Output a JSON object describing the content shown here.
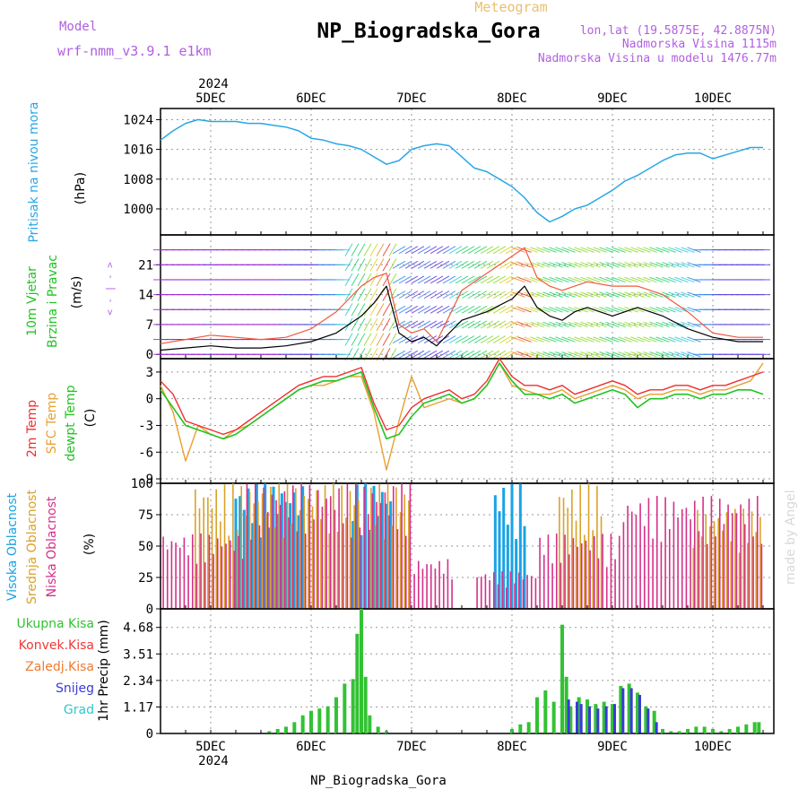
{
  "header": {
    "meteogram_label": "Meteogram",
    "model_label": "Model",
    "model_name": "wrf-nmm_v3.9.1 e1km",
    "station_title": "NP_Biogradska_Gora",
    "lonlat": "lon,lat (19.5875E, 42.8875N)",
    "elevation": "Nadmorska Visina 1115m",
    "model_elevation": "Nadmorska Visina u modelu 1476.77m"
  },
  "footer": {
    "station": "NP_Biogradska_Gora",
    "watermark": "made by Angel"
  },
  "colors": {
    "pressure": "#29a7e6",
    "wind_speed": "#000000",
    "gust": "#f05a3c",
    "temp2m": "#f02e2e",
    "sfc_temp": "#e8a030",
    "dewpoint": "#22c322",
    "high_cloud": "#1aa3e6",
    "mid_cloud": "#d9a22a",
    "low_cloud": "#d4308a",
    "total_precip": "#33c233",
    "conv_precip": "#f03838",
    "frozen": "#f07a30",
    "snow": "#3a3ad9",
    "graupel": "#2ec9c9",
    "side_purple": "#b060e0"
  },
  "chart_data": [
    {
      "type": "line",
      "id": "pressure",
      "ylabel_main": "Pritisak na nivou mora",
      "ylabel_unit": "(hPa)",
      "ylim": [
        993,
        1027
      ],
      "yticks": [
        "1024",
        "1016",
        "1008",
        "1000"
      ],
      "yticks_values": [
        1024,
        1016,
        1008,
        1000
      ],
      "grid": true,
      "top_axis": {
        "year": "2024",
        "days": [
          "5DEC",
          "6DEC",
          "7DEC",
          "8DEC",
          "9DEC",
          "10DEC"
        ]
      },
      "series": [
        {
          "name": "Pritisak na nivou mora",
          "x": [
            0,
            3,
            6,
            9,
            12,
            15,
            18,
            21,
            24,
            27,
            30,
            33,
            36,
            39,
            42,
            45,
            48,
            51,
            54,
            57,
            60,
            63,
            66,
            69,
            72,
            75,
            78,
            81,
            84,
            87,
            90,
            93,
            96,
            99,
            102,
            105,
            108,
            111,
            114,
            117,
            120,
            123,
            126,
            129,
            132,
            135,
            138,
            141,
            144
          ],
          "values": [
            1018.5,
            1021,
            1023,
            1024,
            1023.5,
            1023.5,
            1023.5,
            1023,
            1023,
            1022.5,
            1022,
            1021,
            1019,
            1018.5,
            1017.5,
            1017,
            1016,
            1014,
            1012,
            1013,
            1016,
            1017,
            1017.5,
            1017,
            1014,
            1011,
            1010,
            1008,
            1006,
            1003,
            999,
            996.5,
            998,
            1000,
            1001,
            1003,
            1005,
            1007.5,
            1009,
            1011,
            1013,
            1014.5,
            1015,
            1015,
            1013.5,
            1014.5,
            1015.5,
            1016.5,
            1016.5
          ]
        }
      ]
    },
    {
      "type": "line",
      "id": "wind",
      "ylabel_main": "10m Vjetar",
      "ylabel_main2": "Brzina i Pravac",
      "ylabel_unit": "(m/s)",
      "compass": "N S E W",
      "ylim": [
        -1,
        28
      ],
      "yticks": [
        "21",
        "14",
        "7",
        "0"
      ],
      "yticks_values": [
        21,
        14,
        7,
        0
      ],
      "grid": true,
      "series": [
        {
          "name": "10m Vjetar",
          "x": [
            0,
            6,
            12,
            18,
            24,
            30,
            36,
            42,
            48,
            51,
            54,
            57,
            60,
            63,
            66,
            72,
            78,
            84,
            87,
            90,
            93,
            96,
            99,
            102,
            108,
            114,
            120,
            126,
            132,
            138,
            144
          ],
          "values": [
            1,
            1.5,
            2,
            1.5,
            1.5,
            2,
            3,
            5,
            9,
            12,
            16,
            5,
            3,
            4,
            2,
            8,
            10,
            13,
            16,
            11,
            9,
            8,
            10,
            11,
            9,
            11,
            9,
            6,
            4,
            3,
            3
          ]
        },
        {
          "name": "Udari",
          "x": [
            0,
            6,
            12,
            18,
            24,
            30,
            36,
            42,
            48,
            51,
            54,
            57,
            60,
            63,
            66,
            72,
            78,
            84,
            87,
            90,
            93,
            96,
            99,
            102,
            108,
            114,
            120,
            126,
            132,
            138,
            144
          ],
          "values": [
            2.5,
            3.5,
            4.5,
            4,
            3.5,
            4,
            6,
            10,
            16,
            18,
            19,
            7,
            5,
            6,
            3,
            15,
            19,
            23,
            25,
            18,
            16,
            15,
            16,
            17,
            16,
            16,
            14,
            10,
            5,
            4,
            4
          ]
        }
      ]
    },
    {
      "type": "line",
      "id": "temperature",
      "ylabel_main": "2m Temp",
      "ylabel_main2": "SFC Temp",
      "ylabel_main3": "dewpt Temp",
      "ylabel_unit": "(C)",
      "ylim": [
        -9.5,
        4.5
      ],
      "yticks": [
        "3",
        "0",
        "-3",
        "-6",
        "-9"
      ],
      "yticks_values": [
        3,
        0,
        -3,
        -6,
        -9
      ],
      "grid": true,
      "series": [
        {
          "name": "2m Temp",
          "x": [
            0,
            3,
            6,
            9,
            12,
            15,
            18,
            21,
            24,
            27,
            30,
            33,
            36,
            39,
            42,
            45,
            48,
            51,
            54,
            57,
            60,
            63,
            66,
            69,
            72,
            75,
            78,
            81,
            84,
            87,
            90,
            93,
            96,
            99,
            102,
            105,
            108,
            111,
            114,
            117,
            120,
            123,
            126,
            129,
            132,
            135,
            138,
            141,
            144
          ],
          "values": [
            2,
            0.5,
            -2.5,
            -3,
            -3.5,
            -4,
            -3.5,
            -2.5,
            -1.5,
            -0.5,
            0.5,
            1.5,
            2,
            2.5,
            2.5,
            3,
            3.5,
            -0.5,
            -3.5,
            -3,
            -1,
            0,
            0.5,
            1,
            0,
            0.5,
            2,
            4.5,
            2.5,
            1.5,
            1.5,
            1,
            1.5,
            0.5,
            1,
            1.5,
            2,
            1.5,
            0.5,
            1,
            1,
            1.5,
            1.5,
            1,
            1.5,
            1.5,
            2,
            2.5,
            3
          ]
        },
        {
          "name": "SFC Temp",
          "x": [
            0,
            3,
            6,
            9,
            12,
            15,
            18,
            21,
            24,
            27,
            30,
            33,
            36,
            39,
            42,
            45,
            48,
            51,
            54,
            57,
            60,
            63,
            66,
            69,
            72,
            75,
            78,
            81,
            84,
            87,
            90,
            93,
            96,
            99,
            102,
            105,
            108,
            111,
            114,
            117,
            120,
            123,
            126,
            129,
            132,
            135,
            138,
            141,
            144
          ],
          "values": [
            1.5,
            -1.5,
            -7,
            -3,
            -4,
            -4.5,
            -3.5,
            -3,
            -2,
            -1,
            0,
            1,
            1.5,
            1.5,
            2,
            2.5,
            2.5,
            -1.5,
            -8,
            -2.5,
            2.5,
            -1,
            -0.5,
            0,
            -0.5,
            0,
            1.5,
            4,
            1.5,
            1,
            0.5,
            0.5,
            1,
            0,
            0.5,
            1,
            1.5,
            1,
            0,
            0.5,
            0.5,
            1,
            1,
            0.5,
            1,
            1,
            1.5,
            2,
            4
          ]
        },
        {
          "name": "dewpt Temp",
          "x": [
            0,
            3,
            6,
            9,
            12,
            15,
            18,
            21,
            24,
            27,
            30,
            33,
            36,
            39,
            42,
            45,
            48,
            51,
            54,
            57,
            60,
            63,
            66,
            69,
            72,
            75,
            78,
            81,
            84,
            87,
            90,
            93,
            96,
            99,
            102,
            105,
            108,
            111,
            114,
            117,
            120,
            123,
            126,
            129,
            132,
            135,
            138,
            141,
            144
          ],
          "values": [
            1,
            -1,
            -3,
            -3.5,
            -4,
            -4.5,
            -4,
            -3,
            -2,
            -1,
            0,
            1,
            1.5,
            2,
            2,
            2.5,
            3,
            -1,
            -4.5,
            -4,
            -2,
            -0.5,
            0,
            0.5,
            -0.5,
            0,
            1.5,
            4,
            2,
            0.5,
            0.5,
            0,
            0.5,
            -0.5,
            0,
            0.5,
            1,
            0.5,
            -1,
            0,
            0,
            0.5,
            0.5,
            0,
            0.5,
            0.5,
            1,
            1,
            0.5
          ]
        }
      ]
    },
    {
      "type": "bar",
      "id": "clouds",
      "ylabel_main": "Visoka Oblacnost",
      "ylabel_main2": "Srednja Oblacnost",
      "ylabel_main3": "Niska Oblacnost",
      "ylabel_unit": "(%)",
      "ylim": [
        0,
        100
      ],
      "yticks": [
        "100",
        "75",
        "50",
        "25",
        "0"
      ],
      "yticks_values": [
        100,
        75,
        50,
        25,
        0
      ],
      "grid": true,
      "bar_every_hours": 1,
      "series": [
        {
          "name": "Visoka Oblacnost",
          "ranges": [
            [
              18,
              35,
              100
            ],
            [
              46,
              56,
              100
            ],
            [
              80,
              88,
              100
            ]
          ]
        },
        {
          "name": "Srednja Oblacnost",
          "ranges": [
            [
              8,
              48,
              100
            ],
            [
              50,
              60,
              100
            ],
            [
              95,
              106,
              100
            ],
            [
              127,
              144,
              80
            ]
          ]
        },
        {
          "name": "Niska Oblacnost",
          "ranges": [
            [
              0,
              20,
              60
            ],
            [
              20,
              60,
              100
            ],
            [
              60,
              70,
              40
            ],
            [
              75,
              90,
              30
            ],
            [
              90,
              110,
              60
            ],
            [
              110,
              144,
              90
            ]
          ]
        }
      ]
    },
    {
      "type": "bar",
      "id": "precip",
      "ylabel_main": "1hr Precip",
      "ylabel_unit": "(mm)",
      "legend": [
        "Ukupna Kisa",
        "Konvek.Kisa",
        "Zaledj.Kisa",
        "Snijeg",
        "Grad"
      ],
      "ylim": [
        0,
        5.5
      ],
      "yticks": [
        "4.68",
        "3.51",
        "2.34",
        "1.17",
        "0"
      ],
      "yticks_values": [
        4.68,
        3.51,
        2.34,
        1.17,
        0
      ],
      "grid": true,
      "bottom_axis": {
        "year": "2024",
        "days": [
          "5DEC",
          "6DEC",
          "7DEC",
          "8DEC",
          "9DEC",
          "10DEC"
        ]
      },
      "series": [
        {
          "name": "Ukupna Kisa",
          "x": [
            26,
            28,
            30,
            32,
            34,
            36,
            38,
            40,
            42,
            44,
            46,
            47,
            48,
            49,
            50,
            52,
            54,
            56,
            84,
            86,
            88,
            90,
            92,
            94,
            96,
            97,
            98,
            100,
            102,
            104,
            106,
            108,
            110,
            112,
            114,
            116,
            118,
            120,
            122,
            124,
            126,
            128,
            130,
            132,
            134,
            136,
            138,
            140,
            142,
            143
          ],
          "values": [
            0.1,
            0.2,
            0.3,
            0.5,
            0.8,
            1,
            1.1,
            1.2,
            1.6,
            2.2,
            2.4,
            4.4,
            5.5,
            2.5,
            0.8,
            0.3,
            0.1,
            0,
            0.2,
            0.4,
            0.5,
            1.6,
            1.9,
            1.4,
            4.8,
            2.5,
            1.2,
            1.6,
            1.5,
            1.3,
            1.4,
            1.3,
            2.1,
            2.2,
            1.8,
            1.2,
            1,
            0.2,
            0.1,
            0.1,
            0.2,
            0.3,
            0.3,
            0.2,
            0.1,
            0.2,
            0.3,
            0.4,
            0.5,
            0.5
          ]
        },
        {
          "name": "Snijeg",
          "x": [
            97,
            99,
            100,
            102,
            104,
            106,
            108,
            110,
            112,
            114,
            116,
            118
          ],
          "values": [
            1.5,
            1.4,
            1.3,
            1.2,
            1.1,
            1.2,
            1.3,
            2,
            2,
            1.7,
            1.1,
            0.5
          ]
        }
      ]
    }
  ]
}
